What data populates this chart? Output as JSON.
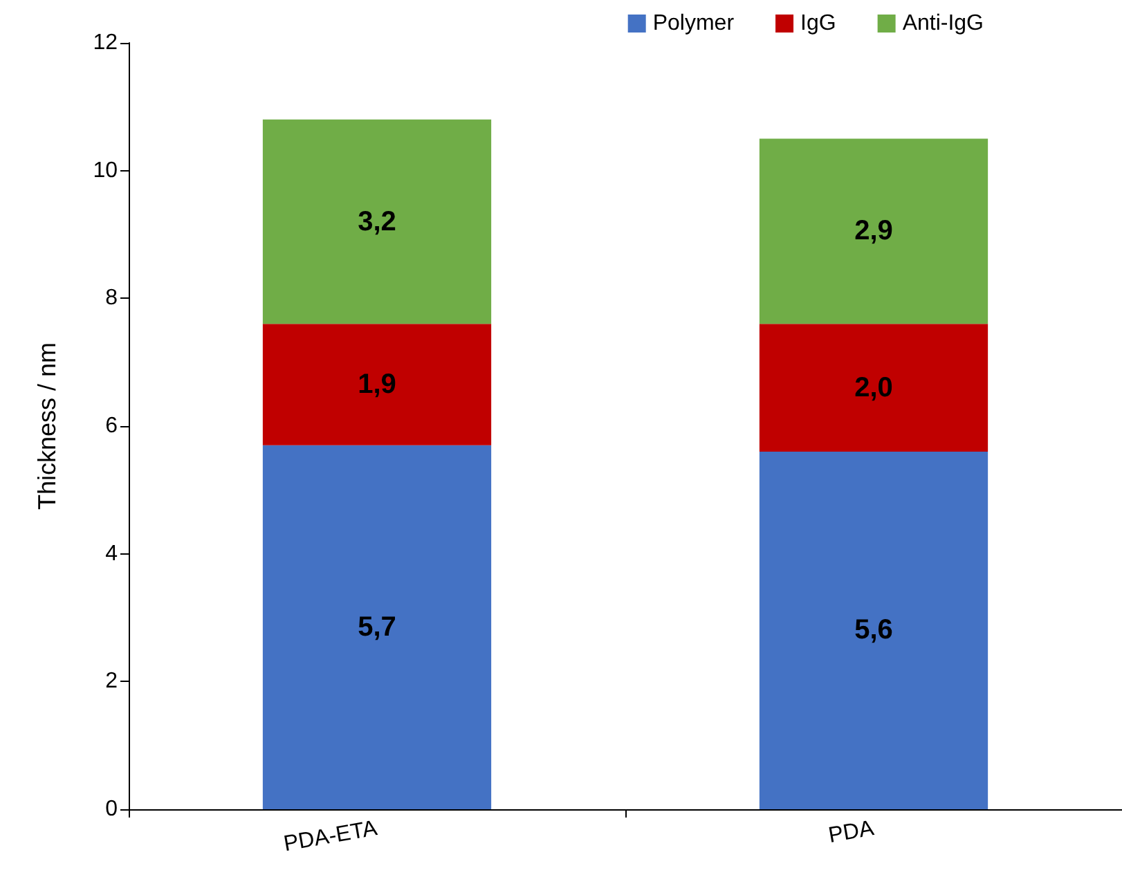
{
  "chart_data": {
    "type": "bar",
    "stacked": true,
    "ylabel": "Thickness / nm",
    "categories": [
      "PDA-ETA",
      "PDA"
    ],
    "series": [
      {
        "name": "Polymer",
        "color": "#4472c4",
        "values": [
          5.7,
          5.6
        ],
        "value_labels": [
          "5,7",
          "5,6"
        ]
      },
      {
        "name": "IgG",
        "color": "#c00000",
        "values": [
          1.9,
          2.0
        ],
        "value_labels": [
          "1,9",
          "2,0"
        ]
      },
      {
        "name": "Anti-IgG",
        "color": "#70ad47",
        "values": [
          3.2,
          2.9
        ],
        "value_labels": [
          "3,2",
          "2,9"
        ]
      }
    ],
    "ylim": [
      0,
      12
    ],
    "yticks": [
      0,
      2,
      4,
      6,
      8,
      10,
      12
    ],
    "grid": false,
    "legend": "top"
  }
}
